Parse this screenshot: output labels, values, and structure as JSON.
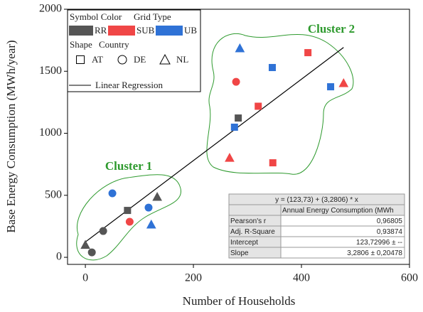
{
  "chart_data": {
    "type": "scatter",
    "x_label": "Number of Households",
    "y_label": "Base Energy Consumption (MWh/year)",
    "xlim": [
      -33,
      600
    ],
    "xticks": [
      0,
      200,
      400,
      600
    ],
    "ylim": [
      -57,
      2000
    ],
    "yticks": [
      0,
      500,
      1000,
      1500,
      2000
    ],
    "legend_titles": {
      "color": "Symbol Color",
      "color_group": "Grid Type",
      "shape": "Shape",
      "shape_group": "Country"
    },
    "shape_legend": [
      {
        "name": "AT",
        "shape": "square"
      },
      {
        "name": "DE",
        "shape": "circle"
      },
      {
        "name": "NL",
        "shape": "triangle"
      }
    ],
    "series": [
      {
        "name": "RR",
        "color": "#555555",
        "x": [
          0,
          12,
          33,
          78,
          133,
          283
        ],
        "values": [
          100,
          40,
          212,
          378,
          487,
          1123
        ],
        "country": [
          "NL",
          "DE",
          "DE",
          "AT",
          "NL",
          "AT"
        ]
      },
      {
        "name": "SUB",
        "color": "#f04646",
        "x": [
          82,
          279,
          320,
          267,
          347,
          412,
          478
        ],
        "values": [
          287,
          1415,
          1218,
          802,
          762,
          1650,
          1404
        ],
        "country": [
          "DE",
          "DE",
          "AT",
          "NL",
          "AT",
          "AT",
          "NL"
        ]
      },
      {
        "name": "UB",
        "color": "#2f72d6",
        "x": [
          50,
          117,
          122,
          286,
          346,
          276,
          454
        ],
        "values": [
          516,
          401,
          264,
          1685,
          1530,
          1049,
          1375
        ],
        "country": [
          "DE",
          "DE",
          "NL",
          "NL",
          "AT",
          "AT",
          "AT"
        ]
      }
    ],
    "regression": {
      "name": "Linear Regression",
      "color": "#000000",
      "intercept": 123.73,
      "slope": 3.2806,
      "x": [
        0,
        478
      ]
    },
    "annotations": [
      "Cluster 1",
      "Cluster 2"
    ],
    "stats_table": {
      "equation": "y = (123,73) + (3,2806) * x",
      "column": "Annual Energy Consumption (MWh",
      "rows": [
        [
          "Pearson's r",
          "0,96805"
        ],
        [
          "Adj. R-Square",
          "0,93874"
        ],
        [
          "Intercept",
          "123,72996 ± --"
        ],
        [
          "Slope",
          "3,2806 ± 0,20478"
        ]
      ]
    }
  }
}
